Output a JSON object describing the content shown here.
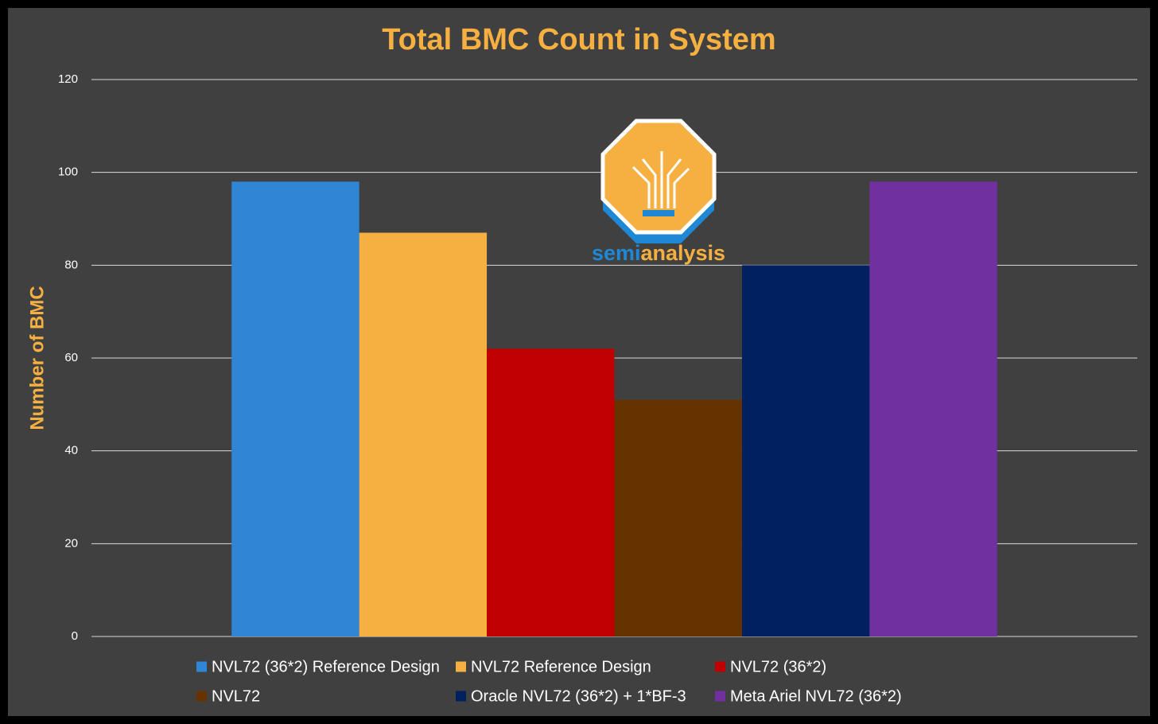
{
  "chart_data": {
    "type": "bar",
    "title": "Total BMC Count in System",
    "y_axis_label": "Number of BMC",
    "categories": [
      null
    ],
    "series": [
      {
        "name": "NVL72 (36*2) Reference Design",
        "color": "#2E86D4",
        "values": [
          98
        ]
      },
      {
        "name": "NVL72 Reference Design",
        "color": "#F5B041",
        "values": [
          87
        ]
      },
      {
        "name": "NVL72 (36*2)",
        "color": "#C00000",
        "values": [
          62
        ]
      },
      {
        "name": "NVL72",
        "color": "#663300",
        "values": [
          51
        ]
      },
      {
        "name": "Oracle NVL72 (36*2) + 1*BF-3",
        "color": "#002060",
        "values": [
          80
        ]
      },
      {
        "name": "Meta Ariel NVL72 (36*2)",
        "color": "#7030A0",
        "values": [
          98
        ]
      }
    ],
    "ylim": [
      0,
      120
    ],
    "yticks": [
      0,
      20,
      40,
      60,
      80,
      100,
      120
    ],
    "grid": true,
    "legend": "bottom",
    "logo_text": [
      "semi",
      "analysis"
    ]
  }
}
